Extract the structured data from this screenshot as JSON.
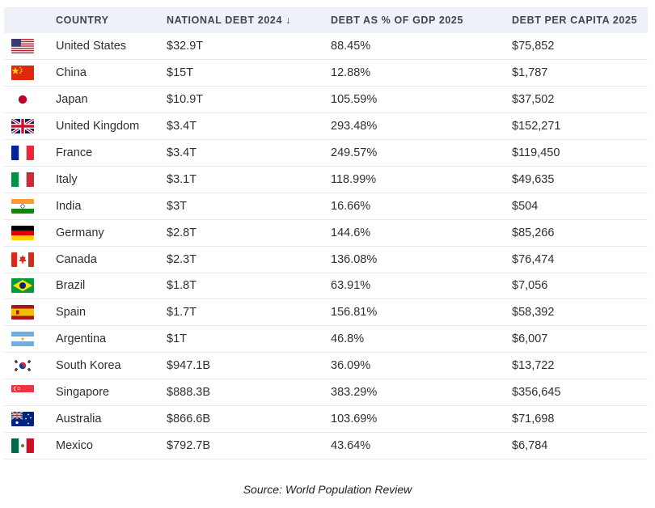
{
  "chart_data": {
    "type": "table",
    "columns": [
      "COUNTRY",
      "NATIONAL DEBT 2024 ↓",
      "DEBT AS % OF GDP 2025",
      "DEBT PER CAPITA 2025"
    ],
    "rows": [
      {
        "country": "United States",
        "flag": "us-flag-icon",
        "debt": "$32.9T",
        "gdp": "88.45%",
        "capita": "$75,852"
      },
      {
        "country": "China",
        "flag": "cn-flag-icon",
        "debt": "$15T",
        "gdp": "12.88%",
        "capita": "$1,787"
      },
      {
        "country": "Japan",
        "flag": "jp-flag-icon",
        "debt": "$10.9T",
        "gdp": "105.59%",
        "capita": "$37,502"
      },
      {
        "country": "United Kingdom",
        "flag": "gb-flag-icon",
        "debt": "$3.4T",
        "gdp": "293.48%",
        "capita": "$152,271"
      },
      {
        "country": "France",
        "flag": "fr-flag-icon",
        "debt": "$3.4T",
        "gdp": "249.57%",
        "capita": "$119,450"
      },
      {
        "country": "Italy",
        "flag": "it-flag-icon",
        "debt": "$3.1T",
        "gdp": "118.99%",
        "capita": "$49,635"
      },
      {
        "country": "India",
        "flag": "in-flag-icon",
        "debt": "$3T",
        "gdp": "16.66%",
        "capita": "$504"
      },
      {
        "country": "Germany",
        "flag": "de-flag-icon",
        "debt": "$2.8T",
        "gdp": "144.6%",
        "capita": "$85,266"
      },
      {
        "country": "Canada",
        "flag": "ca-flag-icon",
        "debt": "$2.3T",
        "gdp": "136.08%",
        "capita": "$76,474"
      },
      {
        "country": "Brazil",
        "flag": "br-flag-icon",
        "debt": "$1.8T",
        "gdp": "63.91%",
        "capita": "$7,056"
      },
      {
        "country": "Spain",
        "flag": "es-flag-icon",
        "debt": "$1.7T",
        "gdp": "156.81%",
        "capita": "$58,392"
      },
      {
        "country": "Argentina",
        "flag": "ar-flag-icon",
        "debt": "$1T",
        "gdp": "46.8%",
        "capita": "$6,007"
      },
      {
        "country": "South Korea",
        "flag": "kr-flag-icon",
        "debt": "$947.1B",
        "gdp": "36.09%",
        "capita": "$13,722"
      },
      {
        "country": "Singapore",
        "flag": "sg-flag-icon",
        "debt": "$888.3B",
        "gdp": "383.29%",
        "capita": "$356,645"
      },
      {
        "country": "Australia",
        "flag": "au-flag-icon",
        "debt": "$866.6B",
        "gdp": "103.69%",
        "capita": "$71,698"
      },
      {
        "country": "Mexico",
        "flag": "mx-flag-icon",
        "debt": "$792.7B",
        "gdp": "43.64%",
        "capita": "$6,784"
      }
    ],
    "sort": {
      "column": "NATIONAL DEBT 2024 ↓",
      "order": "descending"
    },
    "colors": {
      "header_background": "#eef2f8",
      "row_divider": "#e6e9ee"
    }
  },
  "source": "Source: World Population Review"
}
